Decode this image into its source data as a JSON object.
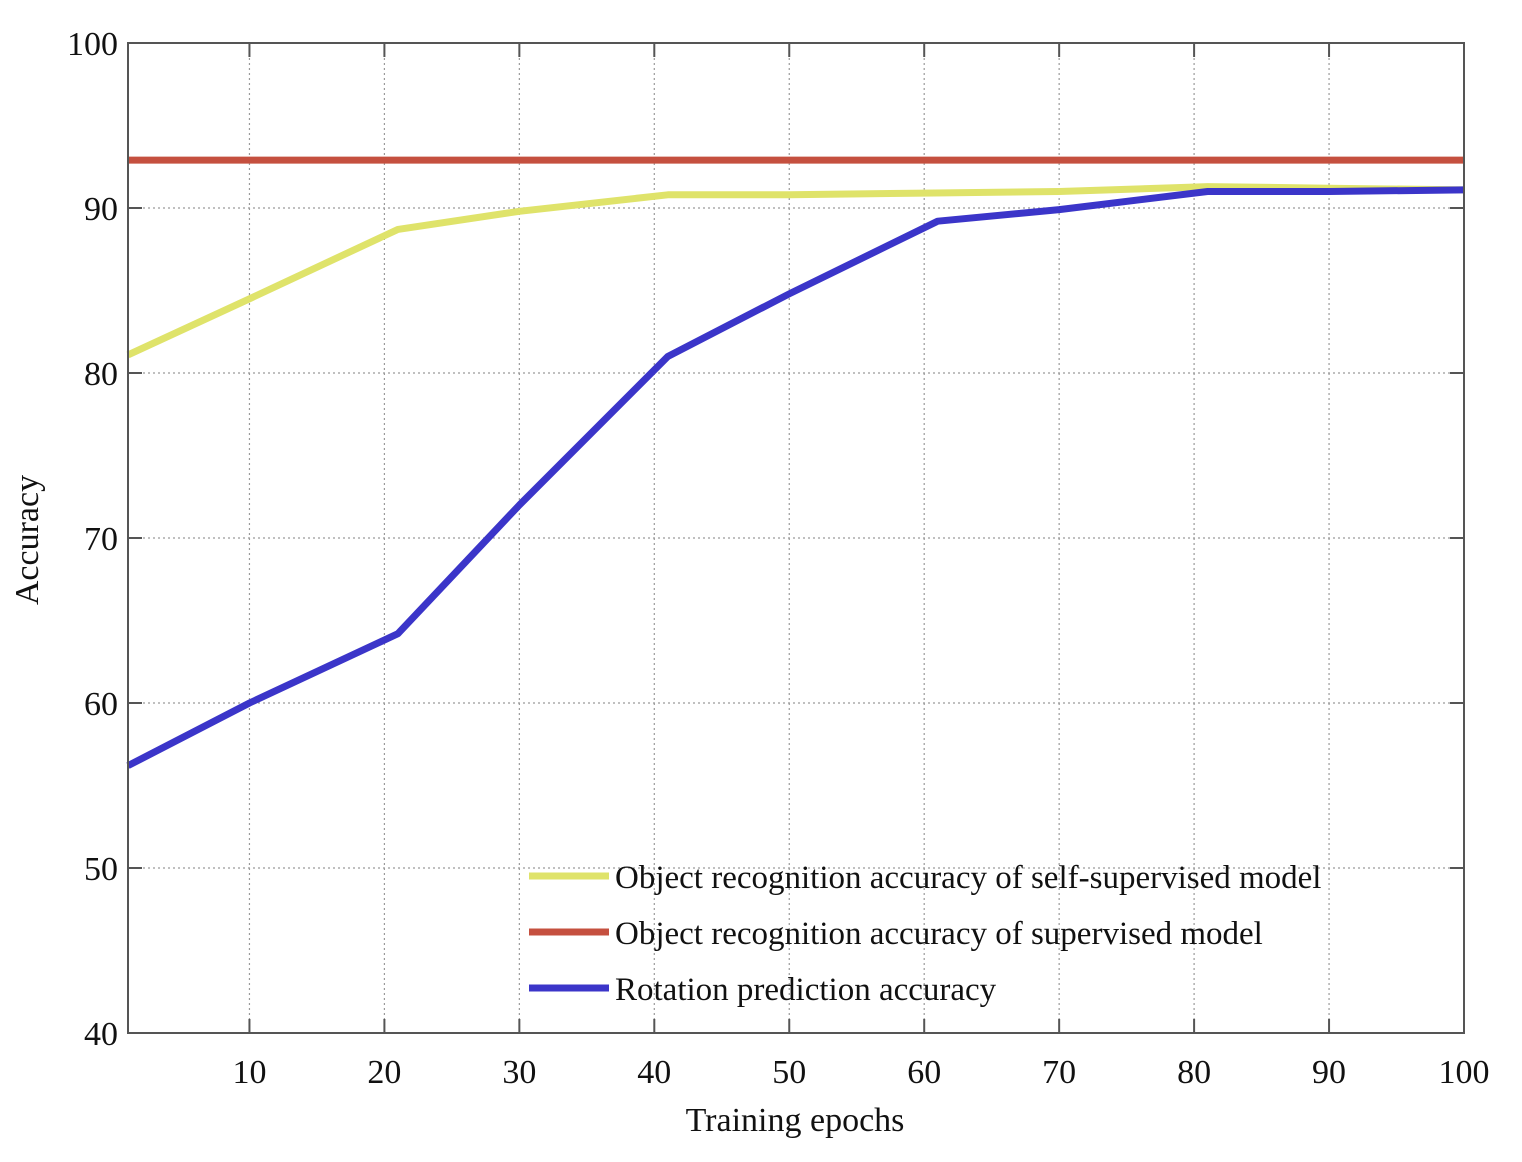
{
  "chart_data": {
    "type": "line",
    "title": "",
    "xlabel": "Training epochs",
    "ylabel": "Accuracy",
    "xlim": [
      1,
      100
    ],
    "ylim": [
      40,
      100
    ],
    "xticks": [
      10,
      20,
      30,
      40,
      50,
      60,
      70,
      80,
      90,
      100
    ],
    "yticks": [
      40,
      50,
      60,
      70,
      80,
      90,
      100
    ],
    "grid": true,
    "legend_position": "lower right",
    "series": [
      {
        "name": "Object recognition accuracy of self-supervised model",
        "color": "#dfe36a",
        "x": [
          1,
          10,
          21,
          30,
          41,
          50,
          60,
          70,
          81,
          90,
          100
        ],
        "values": [
          81.1,
          84.5,
          88.7,
          89.8,
          90.8,
          90.8,
          90.9,
          91.0,
          91.3,
          91.2,
          91.1
        ]
      },
      {
        "name": "Object recognition accuracy of supervised model",
        "color": "#c5503f",
        "x": [
          1,
          100
        ],
        "values": [
          92.9,
          92.9
        ]
      },
      {
        "name": "Rotation prediction accuracy",
        "color": "#3b35c9",
        "x": [
          1,
          10,
          21,
          30,
          41,
          50,
          61,
          70,
          81,
          90,
          100
        ],
        "values": [
          56.2,
          60.0,
          64.2,
          72.0,
          81.0,
          84.8,
          89.2,
          89.9,
          91.0,
          91.0,
          91.1
        ]
      }
    ]
  }
}
